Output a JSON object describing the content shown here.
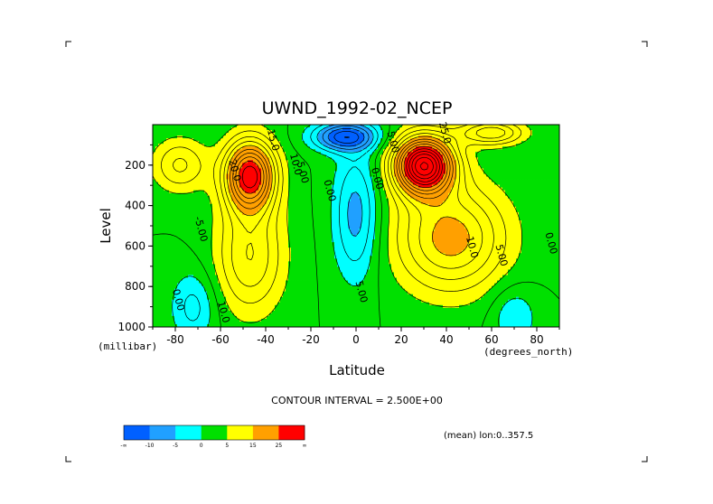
{
  "chart_data": {
    "type": "contour",
    "title": "UWND_1992-02_NCEP",
    "xlabel": "Latitude",
    "ylabel": "Level",
    "x_units": "(degrees_north)",
    "y_units": "(millibar)",
    "xlim": [
      -90,
      90
    ],
    "ylim": [
      1000,
      0
    ],
    "x_ticks": [
      -80,
      -60,
      -40,
      -20,
      0,
      20,
      40,
      60,
      80
    ],
    "y_ticks": [
      200,
      400,
      600,
      800,
      1000
    ],
    "contour_interval_text": "CONTOUR INTERVAL = 2.500E+00",
    "subset_text": "(mean) lon:0..357.5",
    "colorbar": {
      "labels": [
        "-∞",
        "-10",
        "-5",
        "0",
        "5",
        "15",
        "25",
        "∞"
      ],
      "colors": [
        "#0060ff",
        "#20a0ff",
        "#00ffff",
        "#00e000",
        "#ffff00",
        "#ffa000",
        "#ff0000"
      ]
    },
    "contour_labels": [
      {
        "text": "20.0",
        "lat": -55,
        "level": 230
      },
      {
        "text": "15.0",
        "lat": -38,
        "level": 80
      },
      {
        "text": "10.0",
        "lat": -28,
        "level": 200
      },
      {
        "text": "5.00",
        "lat": -25,
        "level": 240
      },
      {
        "text": "0.00",
        "lat": -13,
        "level": 330
      },
      {
        "text": "-5.00",
        "lat": -70,
        "level": 520
      },
      {
        "text": "0.00",
        "lat": -80,
        "level": 870
      },
      {
        "text": "10.0",
        "lat": -60,
        "level": 930
      },
      {
        "text": "5.00",
        "lat": 1,
        "level": 830
      },
      {
        "text": "0.00",
        "lat": 8,
        "level": 270
      },
      {
        "text": "5.00",
        "lat": 15,
        "level": 90
      },
      {
        "text": "25.0",
        "lat": 38,
        "level": 45
      },
      {
        "text": "10.0",
        "lat": 50,
        "level": 610
      },
      {
        "text": "5.00",
        "lat": 63,
        "level": 650
      },
      {
        "text": "0.00",
        "lat": 85,
        "level": 590
      }
    ]
  }
}
